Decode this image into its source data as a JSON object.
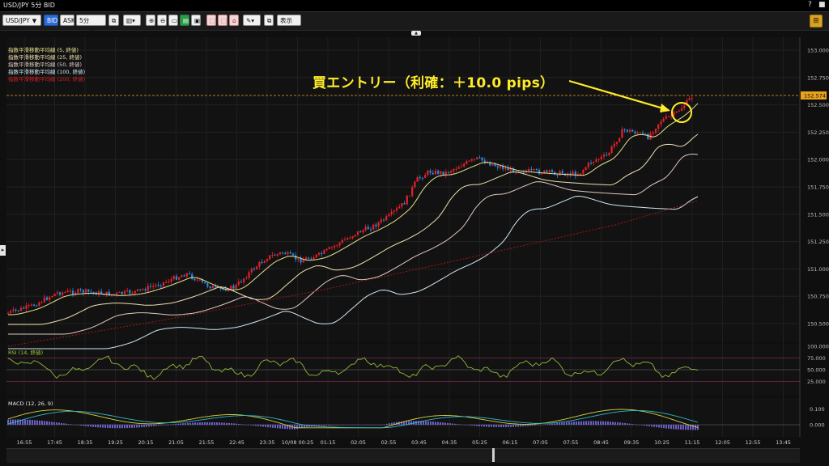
{
  "window": {
    "title": "USD/JPY 5分 BID",
    "help_glyph": "?",
    "close_glyph": "■"
  },
  "toolbar": {
    "symbol": "USD/JPY",
    "bid": "BID",
    "ask": "ASK",
    "timeframe": "5分",
    "display": "表示"
  },
  "legend": [
    {
      "label": "指数平滑移動平均線 (5, 終値)",
      "color": "#e8e08a"
    },
    {
      "label": "指数平滑移動平均線 (25, 終値)",
      "color": "#f0e0b0"
    },
    {
      "label": "指数平滑移動平均線 (50, 終値)",
      "color": "#e0c8c0"
    },
    {
      "label": "指数平滑移動平均線 (100, 終値)",
      "color": "#cfe8f5"
    },
    {
      "label": "指数平滑移動平均線 (200, 終値)",
      "color": "#d02020"
    }
  ],
  "annotation": "買エントリー（利確：＋10.0 pips）",
  "price_axis": [
    "153.000",
    "152.750",
    "152.500",
    "152.250",
    "152.000",
    "151.750",
    "151.500",
    "151.250",
    "151.000",
    "150.750",
    "150.500"
  ],
  "current_price": "152.574",
  "rsi": {
    "label": "RSI (14, 終値)",
    "ticks": [
      "100.000",
      "75.000",
      "50.000",
      "25.000"
    ]
  },
  "macd": {
    "label": "MACD (12, 26, 9)",
    "ticks": [
      "0.100",
      "0.000"
    ]
  },
  "time_axis": [
    "16:55",
    "17:45",
    "18:35",
    "19:25",
    "20:15",
    "21:05",
    "21:55",
    "22:45",
    "23:35",
    "10/08 00:25",
    "01:15",
    "02:05",
    "02:55",
    "03:45",
    "04:35",
    "05:25",
    "06:15",
    "07:05",
    "07:55",
    "08:45",
    "09:35",
    "10:25",
    "11:15",
    "12:05",
    "12:55",
    "13:45"
  ],
  "colors": {
    "up": "#e8202a",
    "down": "#2d86e0",
    "accent": "#ffeb2a",
    "price_line": "#e8a21a"
  }
}
